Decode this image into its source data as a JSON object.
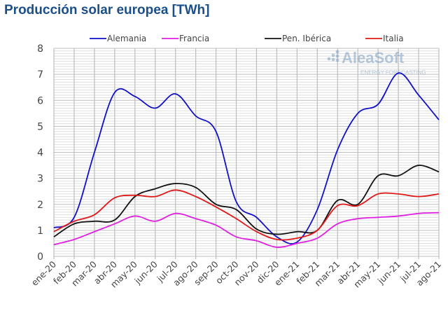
{
  "chart_data": {
    "type": "line",
    "title": "Producción solar europea [TWh]",
    "xlabel": "",
    "ylabel": "",
    "ylim": [
      0,
      8
    ],
    "yticks": [
      0,
      1,
      2,
      3,
      4,
      5,
      6,
      7,
      8
    ],
    "grid": true,
    "legend_position": "top",
    "categories": [
      "ene-20",
      "feb-20",
      "mar-20",
      "abr-20",
      "may-20",
      "jun-20",
      "jul-20",
      "ago-20",
      "sep-20",
      "oct-20",
      "nov-20",
      "dic-20",
      "ene-21",
      "feb-21",
      "mar-21",
      "abr-21",
      "may-21",
      "jun-21",
      "jul-21",
      "ago-21"
    ],
    "series": [
      {
        "name": "Alemania",
        "color": "#1010c8",
        "values": [
          1.1,
          1.5,
          4.0,
          6.3,
          6.15,
          5.7,
          6.25,
          5.4,
          4.8,
          2.1,
          1.5,
          0.75,
          0.55,
          1.8,
          4.1,
          5.5,
          5.85,
          7.05,
          6.2,
          5.25
        ]
      },
      {
        "name": "Francia",
        "color": "#e020e0",
        "values": [
          0.45,
          0.65,
          0.95,
          1.25,
          1.55,
          1.35,
          1.65,
          1.45,
          1.2,
          0.75,
          0.6,
          0.35,
          0.5,
          0.7,
          1.25,
          1.45,
          1.5,
          1.55,
          1.65,
          1.68
        ]
      },
      {
        "name": "Pen. Ibérica",
        "color": "#111111",
        "values": [
          0.75,
          1.25,
          1.35,
          1.4,
          2.3,
          2.6,
          2.8,
          2.65,
          2.0,
          1.8,
          1.05,
          0.85,
          0.95,
          1.0,
          2.15,
          2.0,
          3.1,
          3.1,
          3.5,
          3.25
        ]
      },
      {
        "name": "Italia",
        "color": "#e01818",
        "values": [
          0.95,
          1.35,
          1.6,
          2.25,
          2.35,
          2.3,
          2.55,
          2.3,
          1.9,
          1.45,
          0.95,
          0.65,
          0.7,
          1.0,
          1.95,
          1.95,
          2.4,
          2.4,
          2.3,
          2.4
        ]
      }
    ]
  },
  "logo": {
    "name": "AleaSoft",
    "tagline": "ENERGY FORECASTING"
  }
}
